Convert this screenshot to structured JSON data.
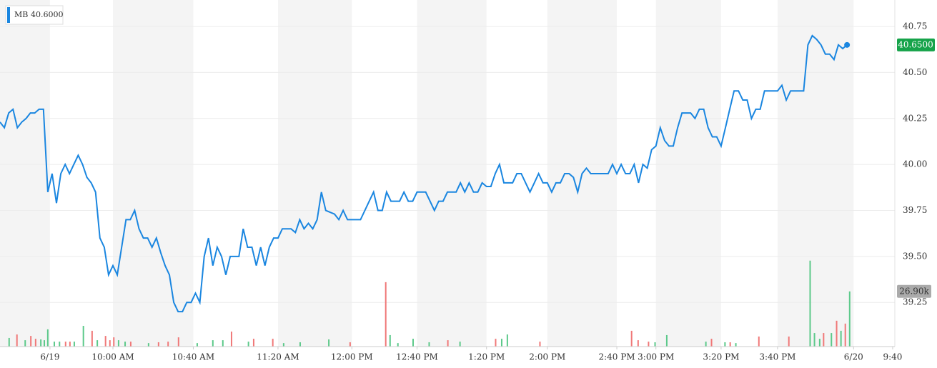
{
  "chart_data": {
    "type": "line",
    "legend": {
      "symbol": "MB",
      "value": "40.6000"
    },
    "series": [
      {
        "name": "MB",
        "color": "#1a86e0",
        "values": [
          40.23,
          40.2,
          40.28,
          40.3,
          40.2,
          40.23,
          40.25,
          40.28,
          40.28,
          40.3,
          40.3,
          39.85,
          39.95,
          39.79,
          39.95,
          40.0,
          39.95,
          40.0,
          40.05,
          40.0,
          39.93,
          39.9,
          39.85,
          39.6,
          39.55,
          39.4,
          39.45,
          39.4,
          39.55,
          39.7,
          39.7,
          39.75,
          39.65,
          39.6,
          39.6,
          39.55,
          39.6,
          39.52,
          39.45,
          39.4,
          39.25,
          39.2,
          39.2,
          39.25,
          39.25,
          39.3,
          39.25,
          39.5,
          39.6,
          39.45,
          39.55,
          39.5,
          39.4,
          39.5,
          39.5,
          39.5,
          39.65,
          39.55,
          39.55,
          39.45,
          39.55,
          39.45,
          39.55,
          39.6,
          39.6,
          39.65,
          39.65,
          39.65,
          39.63,
          39.7,
          39.65,
          39.68,
          39.65,
          39.7,
          39.85,
          39.75,
          39.74,
          39.73,
          39.7,
          39.75,
          39.7,
          39.7,
          39.7,
          39.7,
          39.75,
          39.8,
          39.85,
          39.75,
          39.75,
          39.85,
          39.8,
          39.8,
          39.8,
          39.85,
          39.8,
          39.8,
          39.85,
          39.85,
          39.85,
          39.8,
          39.75,
          39.8,
          39.8,
          39.85,
          39.85,
          39.85,
          39.9,
          39.85,
          39.9,
          39.85,
          39.85,
          39.9,
          39.88,
          39.88,
          39.95,
          40.0,
          39.9,
          39.9,
          39.9,
          39.95,
          39.95,
          39.9,
          39.85,
          39.9,
          39.95,
          39.9,
          39.9,
          39.85,
          39.9,
          39.9,
          39.95,
          39.95,
          39.93,
          39.85,
          39.95,
          39.98,
          39.95,
          39.95,
          39.95,
          39.95,
          39.95,
          40.0,
          39.95,
          40.0,
          39.95,
          39.95,
          40.0,
          39.9,
          40.0,
          39.98,
          40.08,
          40.1,
          40.2,
          40.13,
          40.1,
          40.1,
          40.2,
          40.28,
          40.28,
          40.28,
          40.25,
          40.3,
          40.3,
          40.2,
          40.15,
          40.15,
          40.1,
          40.2,
          40.3,
          40.4,
          40.4,
          40.35,
          40.35,
          40.25,
          40.3,
          40.3,
          40.4,
          40.4,
          40.4,
          40.4,
          40.43,
          40.35,
          40.4,
          40.4,
          40.4,
          40.4,
          40.65,
          40.7,
          40.68,
          40.65,
          40.6,
          40.6,
          40.57,
          40.65,
          40.63,
          40.65
        ]
      }
    ],
    "current_price": {
      "value": 40.65,
      "label": "40.6500"
    },
    "volume": {
      "x": [
        2.1,
        3.9,
        5.8,
        7.1,
        8.2,
        9.4,
        10.2,
        11.0,
        12.5,
        13.7,
        15.1,
        16.1,
        17.1,
        19.2,
        21.2,
        22.4,
        24.3,
        25.3,
        26.2,
        27.3,
        28.8,
        30.1,
        34.2,
        36.5,
        38.7,
        41.1,
        45.4,
        49.0,
        51.3,
        53.3,
        57.2,
        58.4,
        62.8,
        65.3,
        69.1,
        75.7,
        80.6,
        88.8,
        89.8,
        91.6,
        95.1,
        98.8,
        103.1,
        105.9,
        114.1,
        115.5,
        116.8,
        124.3,
        145.4,
        146.9,
        149.3,
        150.8,
        153.5,
        162.5,
        163.8,
        166.9,
        168.1,
        169.4,
        174.7,
        181.6,
        186.5,
        187.5,
        188.7,
        189.6,
        191.4,
        192.6,
        193.6,
        194.6,
        195.6
      ],
      "values": [
        4200,
        5900,
        3100,
        5200,
        3800,
        3500,
        3100,
        8400,
        2400,
        2400,
        2400,
        2400,
        2400,
        10100,
        7700,
        3100,
        5200,
        3100,
        4500,
        3100,
        2400,
        2400,
        1700,
        2100,
        2400,
        4500,
        1700,
        3100,
        3100,
        7300,
        2400,
        3800,
        3800,
        1700,
        2100,
        3500,
        2100,
        31400,
        5600,
        1700,
        3800,
        2100,
        3100,
        2400,
        3800,
        3800,
        5900,
        2400,
        7700,
        3100,
        2400,
        2100,
        5600,
        2400,
        3800,
        2100,
        2100,
        1700,
        4900,
        4900,
        41900,
        6600,
        3800,
        6600,
        6600,
        12600,
        7700,
        11200,
        26900
      ],
      "colors": [
        "#5cc98a",
        "#f07878",
        "#5cc98a",
        "#f07878",
        "#f07878",
        "#5cc98a",
        "#5cc98a",
        "#5cc98a",
        "#5cc98a",
        "#5cc98a",
        "#f07878",
        "#f07878",
        "#5cc98a",
        "#5cc98a",
        "#f07878",
        "#5cc98a",
        "#f07878",
        "#f07878",
        "#f07878",
        "#5cc98a",
        "#5cc98a",
        "#f07878",
        "#5cc98a",
        "#f07878",
        "#f07878",
        "#f07878",
        "#5cc98a",
        "#5cc98a",
        "#5cc98a",
        "#f07878",
        "#5cc98a",
        "#f07878",
        "#f07878",
        "#5cc98a",
        "#5cc98a",
        "#5cc98a",
        "#f07878",
        "#f07878",
        "#5cc98a",
        "#5cc98a",
        "#5cc98a",
        "#5cc98a",
        "#f07878",
        "#5cc98a",
        "#f07878",
        "#5cc98a",
        "#5cc98a",
        "#f07878",
        "#f07878",
        "#f07878",
        "#f07878",
        "#5cc98a",
        "#5cc98a",
        "#5cc98a",
        "#f07878",
        "#5cc98a",
        "#f07878",
        "#5cc98a",
        "#f07878",
        "#f07878",
        "#5cc98a",
        "#5cc98a",
        "#5cc98a",
        "#f07878",
        "#5cc98a",
        "#f07878",
        "#5cc98a",
        "#f07878",
        "#5cc98a"
      ]
    },
    "current_volume": {
      "value": 26900,
      "label": "26.90k"
    },
    "xlim": [
      0,
      206
    ],
    "xticks": [
      {
        "value": 11.5,
        "label": "6/19"
      },
      {
        "value": 26,
        "label": "10:00 AM"
      },
      {
        "value": 44.5,
        "label": "10:40 AM"
      },
      {
        "value": 64,
        "label": "11:20 AM"
      },
      {
        "value": 81,
        "label": "12:00 PM"
      },
      {
        "value": 96,
        "label": "12:40 PM"
      },
      {
        "value": 112,
        "label": "1:20 PM"
      },
      {
        "value": 126,
        "label": "2:00 PM"
      },
      {
        "value": 142,
        "label": "2:40 PM"
      },
      {
        "value": 151,
        "label": "3:00 PM"
      },
      {
        "value": 166,
        "label": "3:20 PM"
      },
      {
        "value": 179,
        "label": "3:40 PM"
      },
      {
        "value": 196.5,
        "label": "6/20"
      },
      {
        "value": 205.5,
        "label": "9:40"
      }
    ],
    "ylim": [
      39.01,
      40.894
    ],
    "yticks": [
      {
        "value": 39.25,
        "label": "39.25"
      },
      {
        "value": 39.5,
        "label": "39.50"
      },
      {
        "value": 39.75,
        "label": "39.75"
      },
      {
        "value": 40,
        "label": "40.00"
      },
      {
        "value": 40.25,
        "label": "40.25"
      },
      {
        "value": 40.5,
        "label": "40.50"
      },
      {
        "value": 40.75,
        "label": "40.75"
      }
    ],
    "y2lim": [
      0,
      169000
    ],
    "grid": true
  }
}
